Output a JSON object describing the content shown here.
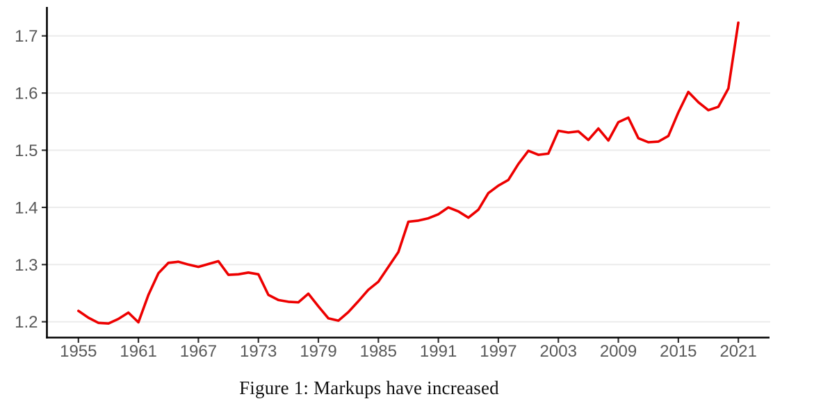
{
  "figure": {
    "caption": "Figure 1: Markups have increased"
  },
  "chart_data": {
    "type": "line",
    "title": "Figure 1: Markups have increased",
    "xlabel": "",
    "ylabel": "",
    "legend": "none",
    "grid": "horizontal-only",
    "line_color": "#ED0000",
    "grid_color": "#ebebeb",
    "axis_color": "#000000",
    "tick_label_color": "#595959",
    "background_color": "#ffffff",
    "x_ticks": [
      1955,
      1961,
      1967,
      1973,
      1979,
      1985,
      1991,
      1997,
      2003,
      2009,
      2015,
      2021
    ],
    "y_ticks": [
      1.2,
      1.3,
      1.4,
      1.5,
      1.6,
      1.7
    ],
    "xlim": [
      1951.9,
      2024.2
    ],
    "ylim": [
      1.172,
      1.751
    ],
    "x": [
      1955,
      1956,
      1957,
      1958,
      1959,
      1960,
      1961,
      1962,
      1963,
      1964,
      1965,
      1966,
      1967,
      1968,
      1969,
      1970,
      1971,
      1972,
      1973,
      1974,
      1975,
      1976,
      1977,
      1978,
      1979,
      1980,
      1981,
      1982,
      1983,
      1984,
      1985,
      1986,
      1987,
      1988,
      1989,
      1990,
      1991,
      1992,
      1993,
      1994,
      1995,
      1996,
      1997,
      1998,
      1999,
      2000,
      2001,
      2002,
      2003,
      2004,
      2005,
      2006,
      2007,
      2008,
      2009,
      2010,
      2011,
      2012,
      2013,
      2014,
      2015,
      2016,
      2017,
      2018,
      2019,
      2020,
      2021
    ],
    "values": [
      1.219,
      1.207,
      1.198,
      1.197,
      1.205,
      1.216,
      1.199,
      1.247,
      1.285,
      1.303,
      1.305,
      1.3,
      1.296,
      1.301,
      1.306,
      1.282,
      1.283,
      1.286,
      1.283,
      1.247,
      1.238,
      1.235,
      1.234,
      1.249,
      1.227,
      1.206,
      1.202,
      1.217,
      1.236,
      1.256,
      1.27,
      1.296,
      1.322,
      1.375,
      1.377,
      1.381,
      1.388,
      1.4,
      1.393,
      1.382,
      1.396,
      1.425,
      1.438,
      1.448,
      1.476,
      1.499,
      1.492,
      1.494,
      1.534,
      1.531,
      1.533,
      1.518,
      1.538,
      1.517,
      1.549,
      1.557,
      1.521,
      1.514,
      1.515,
      1.525,
      1.566,
      1.602,
      1.584,
      1.57,
      1.576,
      1.608,
      1.723
    ]
  }
}
